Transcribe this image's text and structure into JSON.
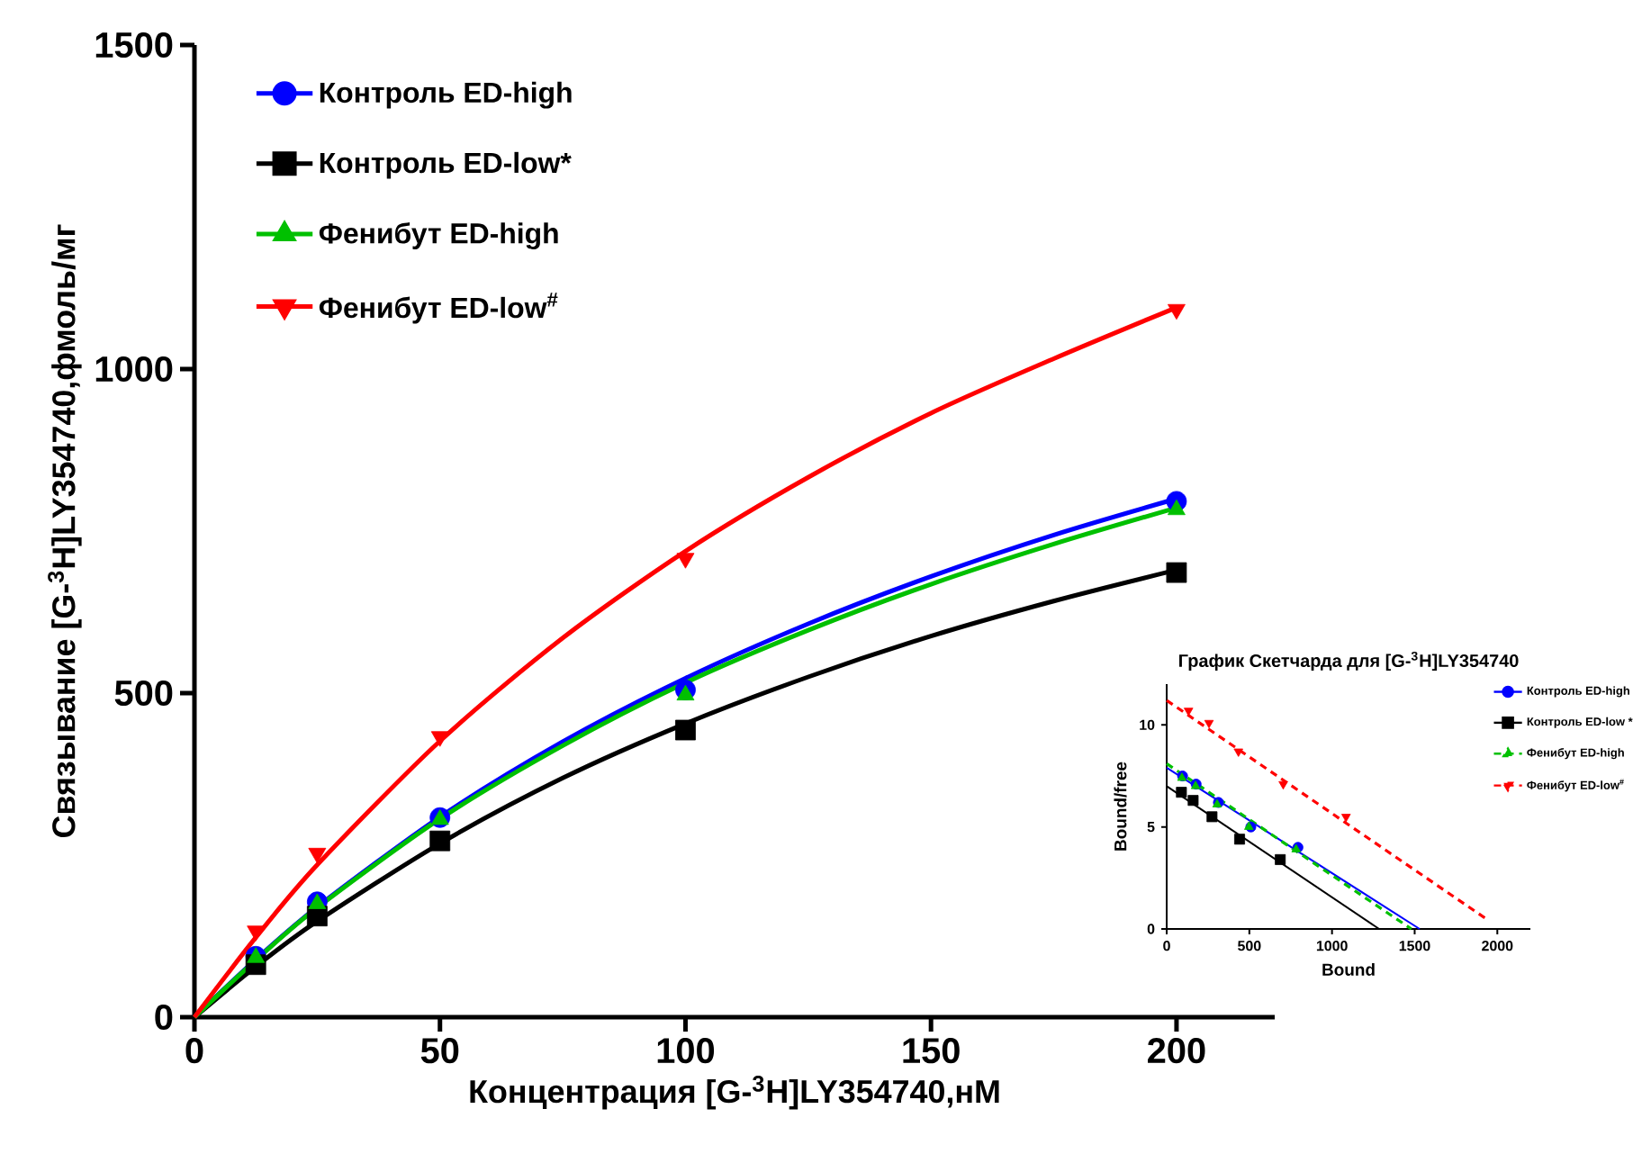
{
  "chart_data": [
    {
      "type": "line",
      "xlabel": "Концентрация [G-$^{3}$H]LY354740,нМ",
      "ylabel": "Связывание [G-$^{3}$H]LY354740,фмоль/мг",
      "xlim": [
        0,
        220
      ],
      "ylim": [
        0,
        1500
      ],
      "xticks": [
        0,
        50,
        100,
        150,
        200
      ],
      "yticks": [
        0,
        500,
        1000,
        1500
      ],
      "legend": "top left",
      "series": [
        {
          "color": "#0000ff",
          "marker": "none",
          "line_style": "solid",
          "x": [
            0,
            12.5,
            25,
            50,
            75,
            100,
            125,
            150,
            175,
            200
          ],
          "values": [
            0,
            89,
            170,
            309,
            425,
            523,
            607,
            680,
            744,
            800
          ]
        },
        {
          "color": "#000000",
          "marker": "none",
          "line_style": "solid",
          "x": [
            0,
            12.5,
            25,
            50,
            75,
            100,
            125,
            150,
            175,
            200
          ],
          "values": [
            0,
            78,
            148,
            268,
            369,
            453,
            525,
            588,
            642,
            690
          ]
        },
        {
          "color": "#00c000",
          "marker": "none",
          "line_style": "solid",
          "x": [
            0,
            12.5,
            25,
            50,
            75,
            100,
            125,
            150,
            175,
            200
          ],
          "values": [
            0,
            88,
            169,
            306,
            419,
            516,
            597,
            668,
            730,
            786
          ]
        },
        {
          "color": "#ff0000",
          "marker": "none",
          "line_style": "solid",
          "x": [
            0,
            12.5,
            25,
            50,
            75,
            100,
            125,
            150,
            175,
            200
          ],
          "values": [
            0,
            123,
            235,
            426,
            585,
            719,
            833,
            932,
            1016,
            1095
          ]
        },
        {
          "type": "scatter",
          "name": "Контроль ED-high",
          "color": "#0000ff",
          "marker": "circle",
          "line_style": "solid",
          "x": [
            12.5,
            25,
            50,
            100,
            200
          ],
          "values": [
            94,
            178,
            308,
            505,
            796
          ]
        },
        {
          "type": "scatter",
          "name": "Контроль ED-low*",
          "color": "#000000",
          "marker": "square",
          "line_style": "solid",
          "x": [
            12.5,
            25,
            50,
            100,
            200
          ],
          "values": [
            81,
            156,
            272,
            443,
            686
          ]
        },
        {
          "type": "scatter",
          "name": "Фенибут ED-high",
          "color": "#00c000",
          "marker": "triangle",
          "line_style": "solid",
          "x": [
            12.5,
            25,
            50,
            100,
            200
          ],
          "values": [
            92,
            175,
            305,
            497,
            783
          ]
        },
        {
          "type": "scatter",
          "name": "Фенибут ED-low$^{#}$",
          "color": "#ff0000",
          "marker": "triangle-down",
          "line_style": "solid",
          "x": [
            12.5,
            25,
            50,
            100,
            200
          ],
          "values": [
            133,
            253,
            433,
            708,
            1092
          ]
        }
      ]
    },
    {
      "type": "line",
      "title": "График Скетчарда для [G-$^{3}$H]LY354740",
      "xlabel": "Bound",
      "ylabel": "Bound/free",
      "xlim": [
        0,
        2200
      ],
      "ylim": [
        0,
        12
      ],
      "xticks": [
        0,
        500,
        1000,
        1500,
        2000
      ],
      "yticks": [
        0,
        5,
        10
      ],
      "legend": "top right",
      "series": [
        {
          "color": "#0000ff",
          "marker": "none",
          "line_style": "solid",
          "x": [
            0,
            1530
          ],
          "values": [
            7.9,
            0
          ]
        },
        {
          "color": "#000000",
          "marker": "none",
          "line_style": "solid",
          "x": [
            0,
            1285
          ],
          "values": [
            7.0,
            0
          ]
        },
        {
          "color": "#00c000",
          "marker": "none",
          "line_style": "dashed",
          "x": [
            0,
            1480
          ],
          "values": [
            8.1,
            0
          ]
        },
        {
          "color": "#ff0000",
          "marker": "none",
          "line_style": "dashed",
          "x": [
            0,
            1950
          ],
          "values": [
            11.2,
            0.4
          ]
        },
        {
          "type": "scatter",
          "name": "Контроль ED-high",
          "color": "#0000ff",
          "marker": "circle",
          "line_style": "solid",
          "x": [
            96,
            178,
            313,
            509,
            794
          ],
          "values": [
            7.5,
            7.1,
            6.2,
            5.0,
            4.0
          ]
        },
        {
          "type": "scatter",
          "name": "Контроль ED-low *",
          "color": "#000000",
          "marker": "square",
          "line_style": "solid",
          "x": [
            89,
            160,
            274,
            441,
            687
          ],
          "values": [
            6.7,
            6.3,
            5.5,
            4.4,
            3.4
          ]
        },
        {
          "type": "scatter",
          "name": "Фенибут ED-high",
          "color": "#00c000",
          "marker": "triangle",
          "line_style": "dashed",
          "x": [
            92,
            175,
            305,
            497,
            783
          ],
          "values": [
            7.4,
            7.0,
            6.1,
            5.0,
            3.9
          ]
        },
        {
          "type": "scatter",
          "name": "Фенибут ED-low$^{#}$",
          "color": "#ff0000",
          "marker": "triangle-down",
          "line_style": "dashed",
          "x": [
            132,
            256,
            434,
            705,
            1085
          ],
          "values": [
            10.7,
            10.1,
            8.7,
            7.1,
            5.5
          ]
        }
      ]
    }
  ]
}
